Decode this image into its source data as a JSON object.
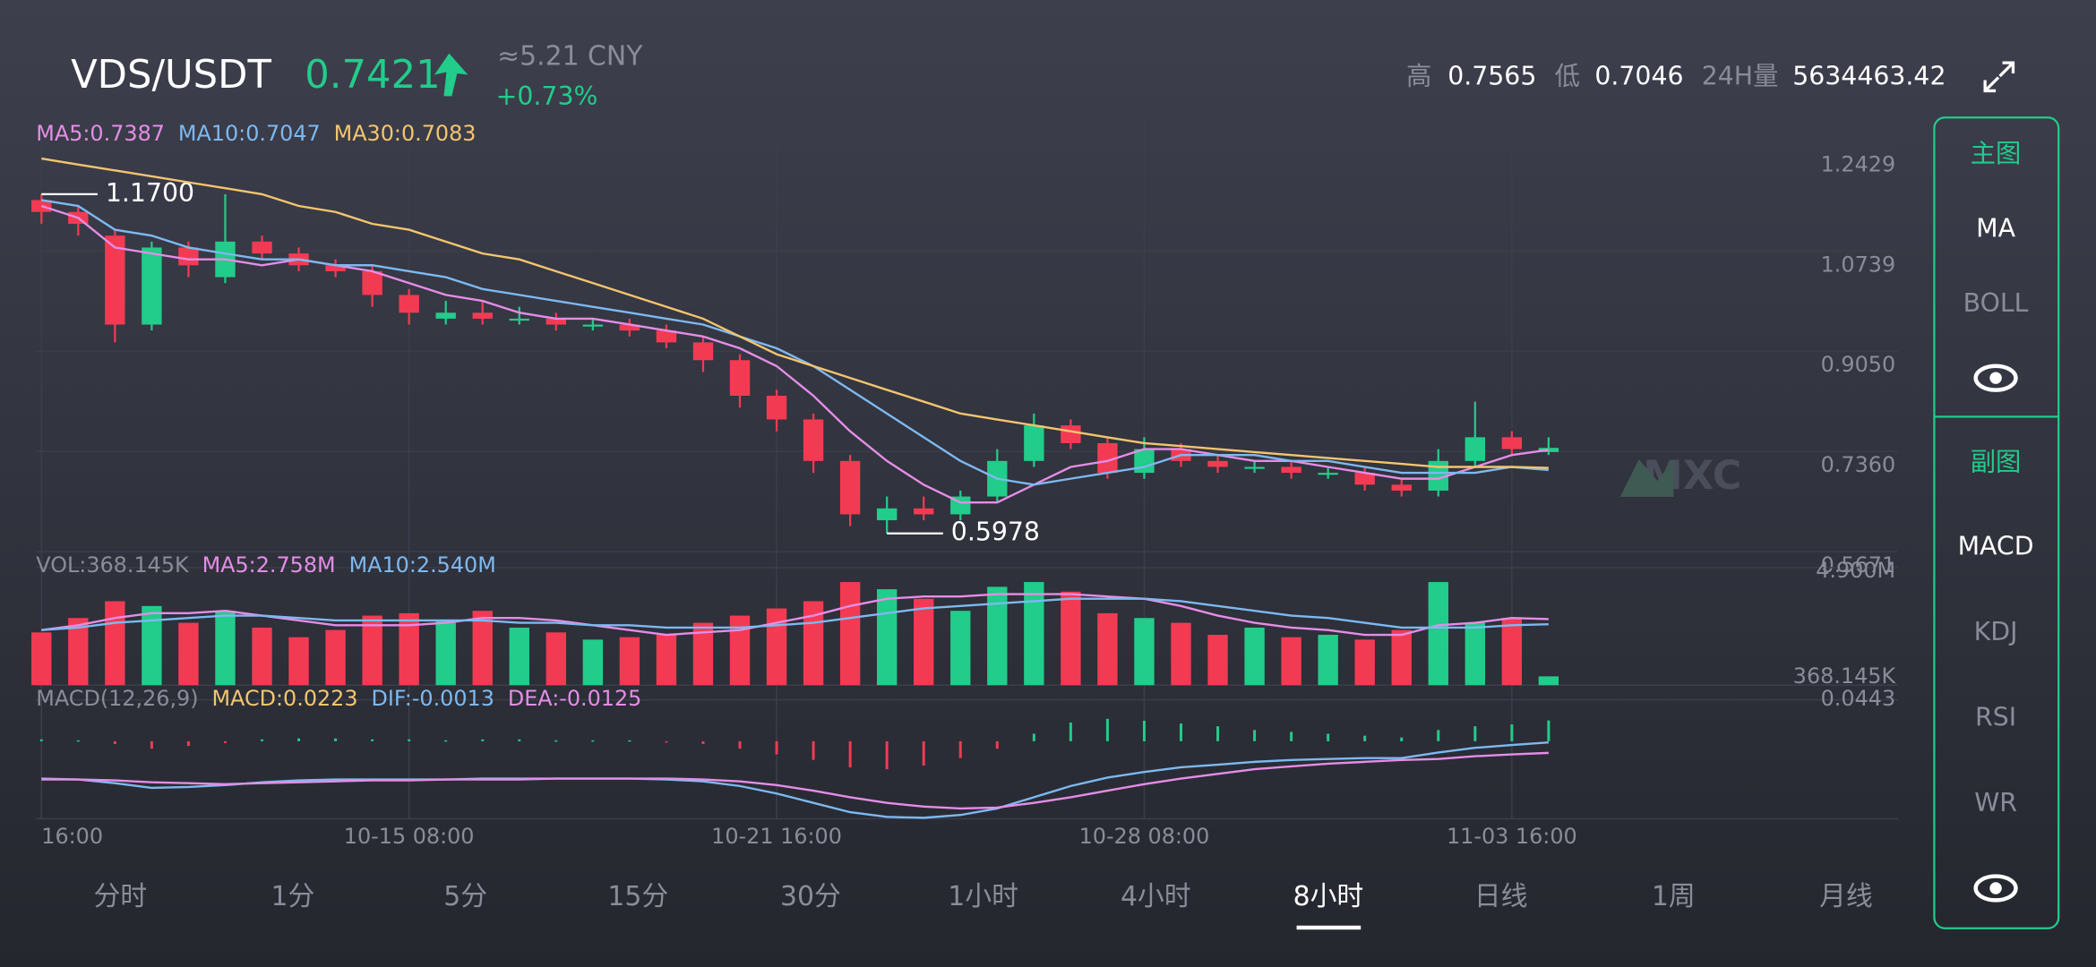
{
  "header": {
    "pair": "VDS/USDT",
    "price": "0.7421",
    "cny": "≈5.21 CNY",
    "change": "+0.73%",
    "high_label": "高",
    "high": "0.7565",
    "low_label": "低",
    "low": "0.7046",
    "vol_label": "24H量",
    "vol": "5634463.42"
  },
  "chart_data": [
    {
      "type": "candlestick",
      "up_color": "#22cc8a",
      "down_color": "#f23b53",
      "legend_series": true,
      "categories": [
        "16:00",
        null,
        null,
        null,
        null,
        null,
        null,
        null,
        null,
        null,
        "10-15 08:00",
        null,
        null,
        null,
        null,
        null,
        null,
        null,
        null,
        null,
        "10-21 16:00",
        null,
        null,
        null,
        null,
        null,
        null,
        null,
        null,
        null,
        "10-28 08:00",
        null,
        null,
        null,
        null,
        null,
        null,
        null,
        null,
        null,
        "11-03 16:00",
        null
      ],
      "open": [
        1.16,
        1.14,
        1.1,
        0.95,
        1.08,
        1.03,
        1.09,
        1.07,
        1.05,
        1.04,
        1.0,
        0.96,
        0.97,
        0.96,
        0.96,
        0.95,
        0.95,
        0.94,
        0.92,
        0.89,
        0.83,
        0.79,
        0.72,
        0.62,
        0.64,
        0.63,
        0.66,
        0.72,
        0.78,
        0.75,
        0.7,
        0.74,
        0.72,
        0.71,
        0.71,
        0.7,
        0.7,
        0.68,
        0.67,
        0.72,
        0.76,
        0.735
      ],
      "high": [
        1.17,
        1.15,
        1.11,
        1.09,
        1.09,
        1.17,
        1.1,
        1.08,
        1.06,
        1.05,
        1.01,
        0.99,
        0.99,
        0.98,
        0.97,
        0.96,
        0.96,
        0.95,
        0.93,
        0.9,
        0.84,
        0.8,
        0.73,
        0.66,
        0.66,
        0.67,
        0.74,
        0.8,
        0.79,
        0.76,
        0.76,
        0.75,
        0.73,
        0.72,
        0.72,
        0.71,
        0.71,
        0.69,
        0.74,
        0.82,
        0.77,
        0.76
      ],
      "low": [
        1.12,
        1.1,
        0.92,
        0.94,
        1.03,
        1.02,
        1.06,
        1.04,
        1.03,
        0.98,
        0.95,
        0.95,
        0.95,
        0.95,
        0.94,
        0.94,
        0.93,
        0.91,
        0.87,
        0.81,
        0.77,
        0.7,
        0.61,
        0.5978,
        0.62,
        0.62,
        0.65,
        0.71,
        0.74,
        0.69,
        0.69,
        0.71,
        0.7,
        0.7,
        0.69,
        0.69,
        0.67,
        0.66,
        0.66,
        0.71,
        0.73,
        0.73
      ],
      "close": [
        1.14,
        1.12,
        0.95,
        1.08,
        1.05,
        1.09,
        1.07,
        1.05,
        1.04,
        1.0,
        0.97,
        0.97,
        0.96,
        0.96,
        0.95,
        0.95,
        0.94,
        0.92,
        0.89,
        0.83,
        0.79,
        0.72,
        0.63,
        0.64,
        0.63,
        0.66,
        0.72,
        0.78,
        0.75,
        0.7,
        0.74,
        0.72,
        0.71,
        0.71,
        0.7,
        0.7,
        0.68,
        0.67,
        0.72,
        0.76,
        0.74,
        0.7421
      ],
      "max_label": "1.1700",
      "min_label": "0.5978",
      "ylim": [
        0.5671,
        1.2429
      ],
      "yticks": [
        1.2429,
        1.0739,
        {
          "value": 0.905,
          "label": "0.9050"
        },
        {
          "value": 0.736,
          "label": "0.7360"
        },
        0.5671
      ],
      "series": [
        {
          "name": "MA5:0.7387",
          "color": "#e58de6",
          "values": [
            1.15,
            1.13,
            1.08,
            1.07,
            1.06,
            1.06,
            1.05,
            1.06,
            1.05,
            1.04,
            1.02,
            1.0,
            0.99,
            0.97,
            0.96,
            0.96,
            0.95,
            0.94,
            0.93,
            0.91,
            0.88,
            0.83,
            0.77,
            0.72,
            0.68,
            0.65,
            0.65,
            0.68,
            0.71,
            0.72,
            0.74,
            0.74,
            0.73,
            0.72,
            0.72,
            0.71,
            0.7,
            0.69,
            0.69,
            0.71,
            0.73,
            0.7387
          ]
        },
        {
          "name": "MA10:0.7047",
          "color": "#7db9f0",
          "values": [
            1.16,
            1.15,
            1.11,
            1.1,
            1.08,
            1.07,
            1.06,
            1.06,
            1.05,
            1.05,
            1.04,
            1.03,
            1.01,
            1.0,
            0.99,
            0.98,
            0.97,
            0.96,
            0.95,
            0.93,
            0.91,
            0.88,
            0.84,
            0.8,
            0.76,
            0.72,
            0.69,
            0.68,
            0.69,
            0.7,
            0.71,
            0.73,
            0.73,
            0.73,
            0.72,
            0.72,
            0.71,
            0.7,
            0.7,
            0.7,
            0.71,
            0.7047
          ]
        },
        {
          "name": "MA30:0.7083",
          "color": "#f3c56e",
          "values": [
            1.23,
            1.22,
            1.21,
            1.2,
            1.19,
            1.18,
            1.17,
            1.15,
            1.14,
            1.12,
            1.11,
            1.09,
            1.07,
            1.06,
            1.04,
            1.02,
            1.0,
            0.98,
            0.96,
            0.93,
            0.9,
            0.88,
            0.86,
            0.84,
            0.82,
            0.8,
            0.79,
            0.78,
            0.77,
            0.76,
            0.75,
            0.745,
            0.74,
            0.735,
            0.73,
            0.725,
            0.72,
            0.715,
            0.71,
            0.71,
            0.71,
            0.7083
          ]
        }
      ]
    },
    {
      "type": "bar",
      "label": "VOL:368.145K",
      "last_label": "368.145K",
      "values": [
        2.2,
        2.8,
        3.5,
        3.3,
        2.6,
        3.1,
        2.4,
        2.0,
        2.3,
        2.9,
        3.0,
        2.7,
        3.1,
        2.4,
        2.2,
        1.9,
        2.0,
        2.1,
        2.6,
        2.9,
        3.2,
        3.5,
        4.3,
        4.0,
        3.6,
        3.1,
        4.1,
        4.3,
        3.9,
        3.0,
        2.8,
        2.6,
        2.1,
        2.4,
        2.0,
        2.1,
        1.9,
        2.3,
        4.3,
        2.6,
        2.8,
        0.368145
      ],
      "ylim": [
        0,
        4.9
      ],
      "yticks": [
        {
          "value": 4.9,
          "label": "4.900M"
        }
      ],
      "series": [
        {
          "name": "MA5:2.758M",
          "color": "#e58de6",
          "values": [
            2.3,
            2.5,
            2.8,
            3.0,
            3.0,
            3.1,
            2.9,
            2.7,
            2.5,
            2.5,
            2.5,
            2.6,
            2.8,
            2.8,
            2.7,
            2.5,
            2.3,
            2.1,
            2.2,
            2.3,
            2.6,
            2.9,
            3.3,
            3.6,
            3.7,
            3.7,
            3.8,
            3.8,
            3.8,
            3.7,
            3.6,
            3.3,
            2.9,
            2.6,
            2.4,
            2.3,
            2.1,
            2.1,
            2.5,
            2.6,
            2.8,
            2.758
          ]
        },
        {
          "name": "MA10:2.540M",
          "color": "#7db9f0",
          "values": [
            2.3,
            2.4,
            2.6,
            2.7,
            2.8,
            2.9,
            2.9,
            2.8,
            2.7,
            2.7,
            2.7,
            2.7,
            2.7,
            2.6,
            2.6,
            2.5,
            2.5,
            2.4,
            2.4,
            2.4,
            2.5,
            2.6,
            2.8,
            3.0,
            3.2,
            3.3,
            3.4,
            3.5,
            3.6,
            3.6,
            3.6,
            3.5,
            3.3,
            3.1,
            2.9,
            2.8,
            2.6,
            2.4,
            2.4,
            2.4,
            2.5,
            2.54
          ]
        }
      ]
    },
    {
      "type": "macd",
      "label": "MACD(12,26,9)",
      "value_text": "MACD:0.0223",
      "value_color": "#f3c56e",
      "values": [
        0.002,
        0.001,
        -0.003,
        -0.008,
        -0.005,
        -0.002,
        0.002,
        0.003,
        0.003,
        0.002,
        0.002,
        0.001,
        0.002,
        0.002,
        0.001,
        0.001,
        0.001,
        -0.001,
        -0.003,
        -0.008,
        -0.014,
        -0.02,
        -0.028,
        -0.03,
        -0.026,
        -0.018,
        -0.008,
        0.008,
        0.02,
        0.024,
        0.022,
        0.019,
        0.016,
        0.012,
        0.01,
        0.008,
        0.006,
        0.004,
        0.012,
        0.016,
        0.018,
        0.0223
      ],
      "ylim": [
        -0.083,
        0.0443
      ],
      "yticks": [
        0.0443
      ],
      "series": [
        {
          "name": "DIF:-0.0013",
          "color": "#7db9f0",
          "values": [
            -0.04,
            -0.041,
            -0.045,
            -0.05,
            -0.049,
            -0.047,
            -0.044,
            -0.042,
            -0.041,
            -0.041,
            -0.041,
            -0.041,
            -0.04,
            -0.04,
            -0.04,
            -0.04,
            -0.04,
            -0.041,
            -0.043,
            -0.048,
            -0.056,
            -0.066,
            -0.076,
            -0.081,
            -0.082,
            -0.079,
            -0.072,
            -0.06,
            -0.048,
            -0.039,
            -0.033,
            -0.028,
            -0.025,
            -0.022,
            -0.02,
            -0.019,
            -0.018,
            -0.018,
            -0.012,
            -0.007,
            -0.004,
            -0.0013
          ]
        },
        {
          "name": "DEA:-0.0125",
          "color": "#e58de6",
          "values": [
            -0.041,
            -0.041,
            -0.042,
            -0.044,
            -0.045,
            -0.046,
            -0.045,
            -0.044,
            -0.043,
            -0.042,
            -0.042,
            -0.041,
            -0.041,
            -0.041,
            -0.04,
            -0.04,
            -0.04,
            -0.04,
            -0.041,
            -0.043,
            -0.047,
            -0.053,
            -0.06,
            -0.066,
            -0.07,
            -0.072,
            -0.071,
            -0.066,
            -0.06,
            -0.053,
            -0.046,
            -0.04,
            -0.035,
            -0.03,
            -0.027,
            -0.024,
            -0.022,
            -0.02,
            -0.019,
            -0.016,
            -0.014,
            -0.0125
          ]
        }
      ]
    }
  ],
  "tabs": [
    "分时",
    "1分",
    "5分",
    "15分",
    "30分",
    "1小时",
    "4小时",
    "8小时",
    "日线",
    "1周",
    "月线"
  ],
  "active_tab": 7,
  "side_panel": {
    "main_title": "主图",
    "main_items": [
      "MA",
      "BOLL"
    ],
    "sub_title": "副图",
    "sub_items": [
      "MACD",
      "KDJ",
      "RSI",
      "WR"
    ]
  },
  "watermark": "MXC"
}
